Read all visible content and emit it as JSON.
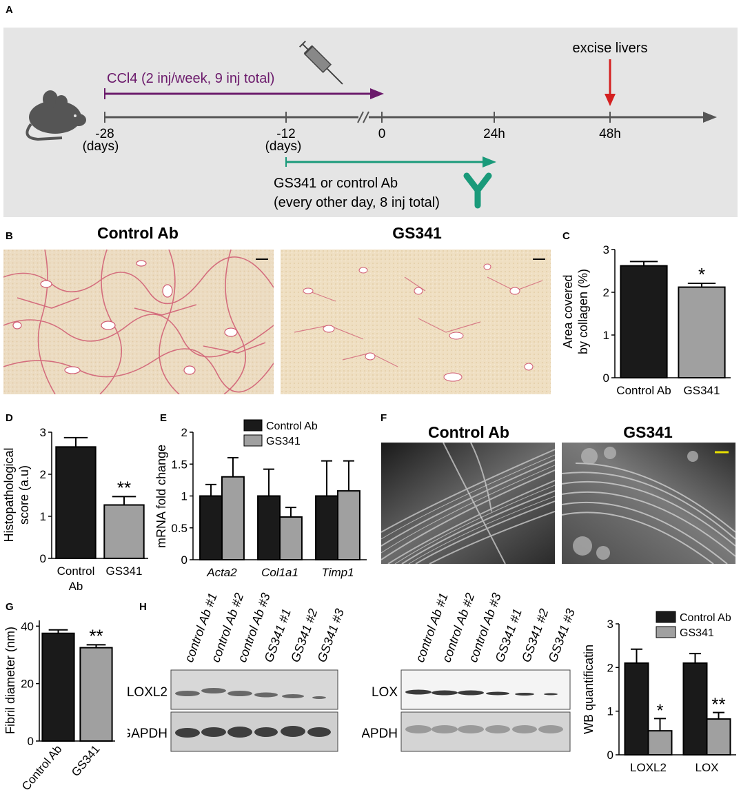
{
  "panels": {
    "A": "A",
    "B": "B",
    "C": "C",
    "D": "D",
    "E": "E",
    "F": "F",
    "G": "G",
    "H": "H"
  },
  "timeline": {
    "ccl4_label": "CCl4 (2 inj/week, 9 inj total)",
    "excise_label": "excise livers",
    "tick_m28": "-28",
    "days_1": "(days)",
    "tick_m12": "-12",
    "days_2": "(days)",
    "tick_0": "0",
    "tick_24": "24h",
    "tick_48": "48h",
    "treat_line1": "GS341 or control Ab",
    "treat_line2": "(every other day, 8 inj total)",
    "colors": {
      "ccl4": "#6b1a6b",
      "treatment": "#1a9a7a",
      "excise": "#d42020",
      "axis": "#555555",
      "bg": "#e5e5e5"
    },
    "icons": [
      "mouse-icon",
      "syringe-icon",
      "antibody-icon"
    ]
  },
  "histology": {
    "left_title": "Control Ab",
    "right_title": "GS341"
  },
  "sem": {
    "left_title": "Control Ab",
    "right_title": "GS341"
  },
  "western": {
    "lanes": [
      "control Ab #1",
      "control Ab #2",
      "control Ab #3",
      "GS341 #1",
      "GS341 #2",
      "GS341 #3"
    ],
    "loxl2": "LOXL2",
    "lox": "LOX",
    "gapdh1": "GAPDH",
    "gapdh2": "GAPDH"
  },
  "chart_data": [
    {
      "id": "C",
      "type": "bar",
      "categories": [
        "Control Ab",
        "GS341"
      ],
      "values": [
        2.62,
        2.12
      ],
      "errors": [
        0.1,
        0.09
      ],
      "ylabel_line1": "Area covered",
      "ylabel_line2": "by collagen (%)",
      "ylim": [
        0,
        3
      ],
      "yticks": [
        0,
        1,
        2,
        3
      ],
      "annotations": [
        "",
        "*"
      ],
      "colors": [
        "#1a1a1a",
        "#a0a0a0"
      ]
    },
    {
      "id": "D",
      "type": "bar",
      "categories": [
        "Control",
        "GS341"
      ],
      "category_line2": [
        "Ab",
        ""
      ],
      "values": [
        2.65,
        1.27
      ],
      "errors": [
        0.22,
        0.2
      ],
      "ylabel_line1": "Histopathological",
      "ylabel_line2": "score (a.u)",
      "ylim": [
        0,
        3
      ],
      "yticks": [
        0,
        1,
        2,
        3
      ],
      "annotations": [
        "",
        "**"
      ],
      "colors": [
        "#1a1a1a",
        "#a0a0a0"
      ]
    },
    {
      "id": "E",
      "type": "bar",
      "categories": [
        "Acta2",
        "Col1a1",
        "Timp1"
      ],
      "series": [
        {
          "name": "Control Ab",
          "values": [
            1.0,
            1.0,
            1.0
          ],
          "errors": [
            0.18,
            0.42,
            0.55
          ]
        },
        {
          "name": "GS341",
          "values": [
            1.3,
            0.67,
            1.08
          ],
          "errors": [
            0.3,
            0.15,
            0.47
          ]
        }
      ],
      "ylabel": "mRNA fold change",
      "ylim": [
        0,
        2
      ],
      "yticks": [
        0,
        0.5,
        1,
        1.5,
        2
      ],
      "ytick_labels": [
        "0",
        "0.5",
        "1",
        "1.5",
        "2"
      ],
      "legend": "top-right",
      "colors": [
        "#1a1a1a",
        "#a0a0a0"
      ]
    },
    {
      "id": "G",
      "type": "bar",
      "categories": [
        "Control Ab",
        "GS341"
      ],
      "values": [
        37.5,
        32.5
      ],
      "errors": [
        1.2,
        1.0
      ],
      "ylabel": "Fibril diameter (nm)",
      "ylim": [
        0,
        42
      ],
      "yticks": [
        0,
        20,
        40
      ],
      "annotations": [
        "",
        "**"
      ],
      "colors": [
        "#1a1a1a",
        "#a0a0a0"
      ]
    },
    {
      "id": "H",
      "type": "bar",
      "categories": [
        "LOXL2",
        "LOX"
      ],
      "series": [
        {
          "name": "Control Ab",
          "values": [
            2.1,
            2.1
          ],
          "errors": [
            0.32,
            0.22
          ]
        },
        {
          "name": "GS341",
          "values": [
            0.55,
            0.82
          ],
          "errors": [
            0.28,
            0.15
          ]
        }
      ],
      "ylabel": "WB quantificatin",
      "ylim": [
        0,
        3
      ],
      "yticks": [
        0,
        1,
        2,
        3
      ],
      "annotations": [
        [
          "",
          ""
        ],
        [
          "*",
          "**"
        ]
      ],
      "legend": "top",
      "colors": [
        "#1a1a1a",
        "#a0a0a0"
      ]
    }
  ]
}
